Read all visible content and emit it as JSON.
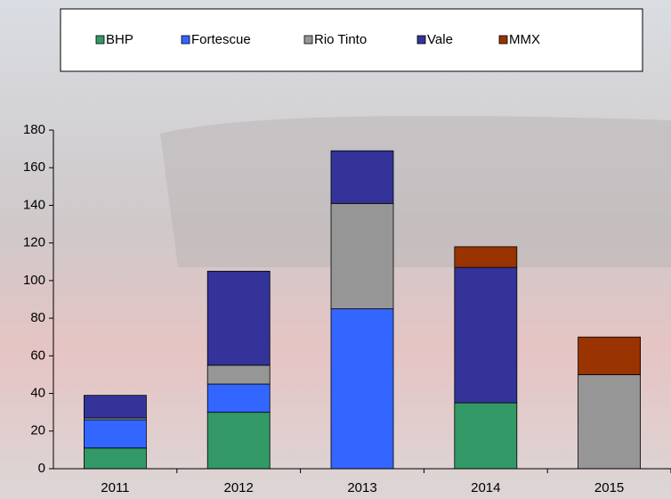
{
  "chart_data": {
    "type": "stacked_bar",
    "categories": [
      "2011",
      "2012",
      "2013",
      "2014",
      "2015"
    ],
    "series": [
      {
        "name": "BHP",
        "color": "#339966",
        "values": [
          11,
          30,
          0,
          35,
          0
        ]
      },
      {
        "name": "Fortescue",
        "color": "#3366ff",
        "values": [
          15,
          15,
          85,
          0,
          0
        ]
      },
      {
        "name": "Rio Tinto",
        "color": "#969696",
        "values": [
          1,
          10,
          56,
          0,
          50
        ]
      },
      {
        "name": "Vale",
        "color": "#333399",
        "values": [
          12,
          50,
          28,
          72,
          0
        ]
      },
      {
        "name": "MMX",
        "color": "#993300",
        "values": [
          0,
          0,
          0,
          11,
          20
        ]
      }
    ],
    "ylim": [
      0,
      180
    ],
    "yticks": [
      0,
      20,
      40,
      60,
      80,
      100,
      120,
      140,
      160,
      180
    ],
    "legend": "top"
  }
}
